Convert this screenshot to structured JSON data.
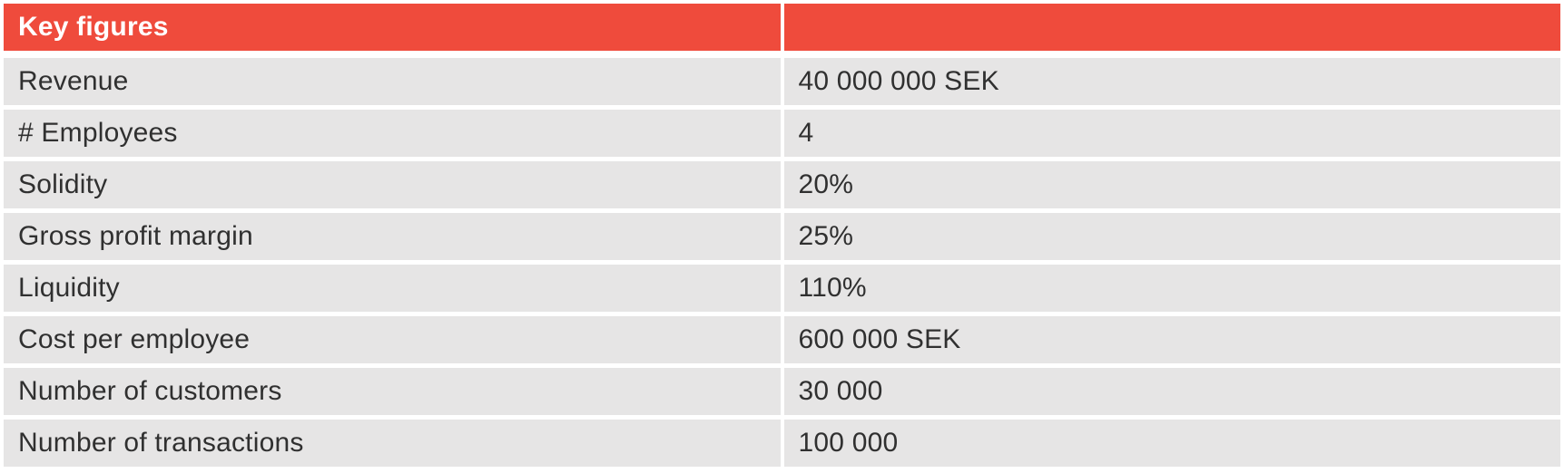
{
  "chart_data": {
    "type": "table",
    "title": "Key figures",
    "columns": [
      "Key figures",
      ""
    ],
    "rows": [
      [
        "Revenue",
        "40 000 000 SEK"
      ],
      [
        "# Employees",
        "4"
      ],
      [
        "Solidity",
        "20%"
      ],
      [
        "Gross profit margin",
        "25%"
      ],
      [
        "Liquidity",
        "110%"
      ],
      [
        "Cost per employee",
        "600 000 SEK"
      ],
      [
        "Number of customers",
        "30 000"
      ],
      [
        "Number of transactions",
        "100 000"
      ]
    ],
    "layout": {
      "header_background": "#EF4B3C",
      "row_background": "#E6E5E5",
      "header_text_color": "#FFFFFF",
      "body_text_color": "#303030",
      "gap_color": "#FFFFFF",
      "columns_ratio": [
        0.5,
        0.5
      ]
    }
  },
  "table": {
    "header": {
      "label": "Key figures",
      "value": ""
    },
    "rows": [
      {
        "label": "Revenue",
        "value": "40 000 000 SEK"
      },
      {
        "label": "# Employees",
        "value": "4"
      },
      {
        "label": "Solidity",
        "value": "20%"
      },
      {
        "label": "Gross profit margin",
        "value": "25%"
      },
      {
        "label": "Liquidity",
        "value": "110%"
      },
      {
        "label": "Cost per employee",
        "value": "600 000 SEK"
      },
      {
        "label": "Number of customers",
        "value": "30 000"
      },
      {
        "label": "Number of transactions",
        "value": "100 000"
      }
    ]
  },
  "colors": {
    "header_bg": "#EF4B3C",
    "row_bg": "#E6E5E5",
    "header_text": "#FFFFFF",
    "body_text": "#303030",
    "page_bg": "#FFFFFF"
  }
}
